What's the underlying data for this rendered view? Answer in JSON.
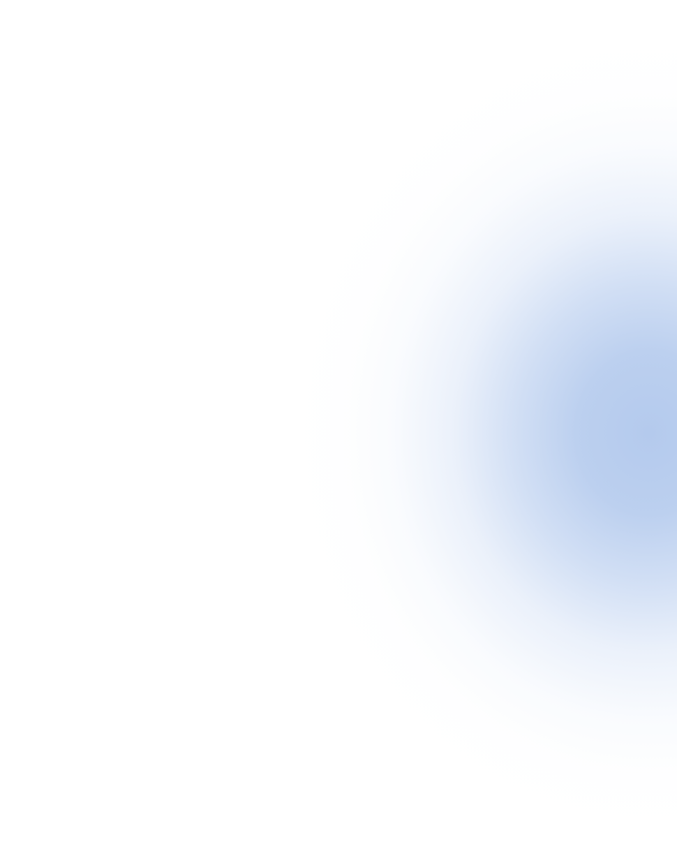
{
  "background": {
    "base_color": "#ffffff",
    "glow_color": "#b4caed"
  }
}
